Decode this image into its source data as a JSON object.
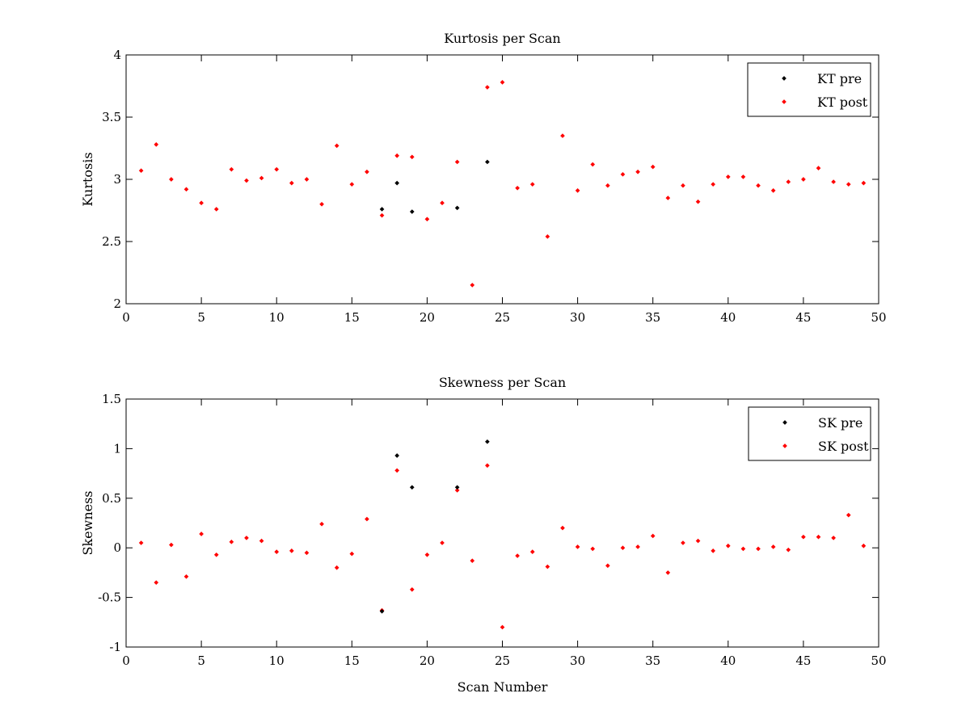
{
  "chart_data": [
    {
      "type": "scatter",
      "title": "Kurtosis per Scan",
      "xlabel": "",
      "ylabel": "Kurtosis",
      "xlim": [
        0,
        50
      ],
      "ylim": [
        2,
        4
      ],
      "xticks": [
        "0",
        "5",
        "10",
        "15",
        "20",
        "25",
        "30",
        "35",
        "40",
        "45",
        "50"
      ],
      "yticks": [
        "2",
        "2.5",
        "3",
        "3.5",
        "4"
      ],
      "legend_position": "top-right",
      "grid": false,
      "series": [
        {
          "name": "KT pre",
          "color": "#000000",
          "x": [
            17,
            18,
            19,
            22,
            24
          ],
          "y": [
            2.76,
            2.97,
            2.74,
            2.77,
            3.14
          ]
        },
        {
          "name": "KT post",
          "color": "#ff0000",
          "x": [
            1,
            2,
            3,
            4,
            5,
            6,
            7,
            8,
            9,
            10,
            11,
            12,
            13,
            14,
            15,
            16,
            17,
            18,
            19,
            20,
            21,
            22,
            23,
            24,
            25,
            26,
            27,
            28,
            29,
            30,
            31,
            32,
            33,
            34,
            35,
            36,
            37,
            38,
            39,
            40,
            41,
            42,
            43,
            44,
            45,
            46,
            47,
            48,
            49
          ],
          "y": [
            3.07,
            3.28,
            3.0,
            2.92,
            2.81,
            2.76,
            3.08,
            2.99,
            3.01,
            3.08,
            2.97,
            3.0,
            2.8,
            3.27,
            2.96,
            3.06,
            2.71,
            3.19,
            3.18,
            2.68,
            2.81,
            3.14,
            2.15,
            3.74,
            3.78,
            2.93,
            2.96,
            2.54,
            3.35,
            2.91,
            3.12,
            2.95,
            3.04,
            3.06,
            3.1,
            2.85,
            2.95,
            2.82,
            2.96,
            3.02,
            3.02,
            2.95,
            2.91,
            2.98,
            3.0,
            3.09,
            2.98,
            2.96,
            2.97
          ]
        }
      ]
    },
    {
      "type": "scatter",
      "title": "Skewness per Scan",
      "xlabel": "Scan Number",
      "ylabel": "Skewness",
      "xlim": [
        0,
        50
      ],
      "ylim": [
        -1,
        1.5
      ],
      "xticks": [
        "0",
        "5",
        "10",
        "15",
        "20",
        "25",
        "30",
        "35",
        "40",
        "45",
        "50"
      ],
      "yticks": [
        "-1",
        "-0.5",
        "0",
        "0.5",
        "1",
        "1.5"
      ],
      "legend_position": "top-right",
      "grid": false,
      "series": [
        {
          "name": "SK pre",
          "color": "#000000",
          "x": [
            17,
            18,
            19,
            22,
            24
          ],
          "y": [
            -0.64,
            0.93,
            0.61,
            0.61,
            1.07
          ]
        },
        {
          "name": "SK post",
          "color": "#ff0000",
          "x": [
            1,
            2,
            3,
            4,
            5,
            6,
            7,
            8,
            9,
            10,
            11,
            12,
            13,
            14,
            15,
            16,
            17,
            18,
            19,
            20,
            21,
            22,
            23,
            24,
            25,
            26,
            27,
            28,
            29,
            30,
            31,
            32,
            33,
            34,
            35,
            36,
            37,
            38,
            39,
            40,
            41,
            42,
            43,
            44,
            45,
            46,
            47,
            48,
            49
          ],
          "y": [
            0.05,
            -0.35,
            0.03,
            -0.29,
            0.14,
            -0.07,
            0.06,
            0.1,
            0.07,
            -0.04,
            -0.03,
            -0.05,
            0.24,
            -0.2,
            -0.06,
            0.29,
            -0.63,
            0.78,
            -0.42,
            -0.07,
            0.05,
            0.58,
            -0.13,
            0.83,
            -0.8,
            -0.08,
            -0.04,
            -0.19,
            0.2,
            0.01,
            -0.01,
            -0.18,
            0.0,
            0.01,
            0.12,
            -0.25,
            0.05,
            0.07,
            -0.03,
            0.02,
            -0.01,
            -0.01,
            0.01,
            -0.02,
            0.11,
            0.11,
            0.1,
            0.33,
            0.02
          ]
        }
      ]
    }
  ]
}
